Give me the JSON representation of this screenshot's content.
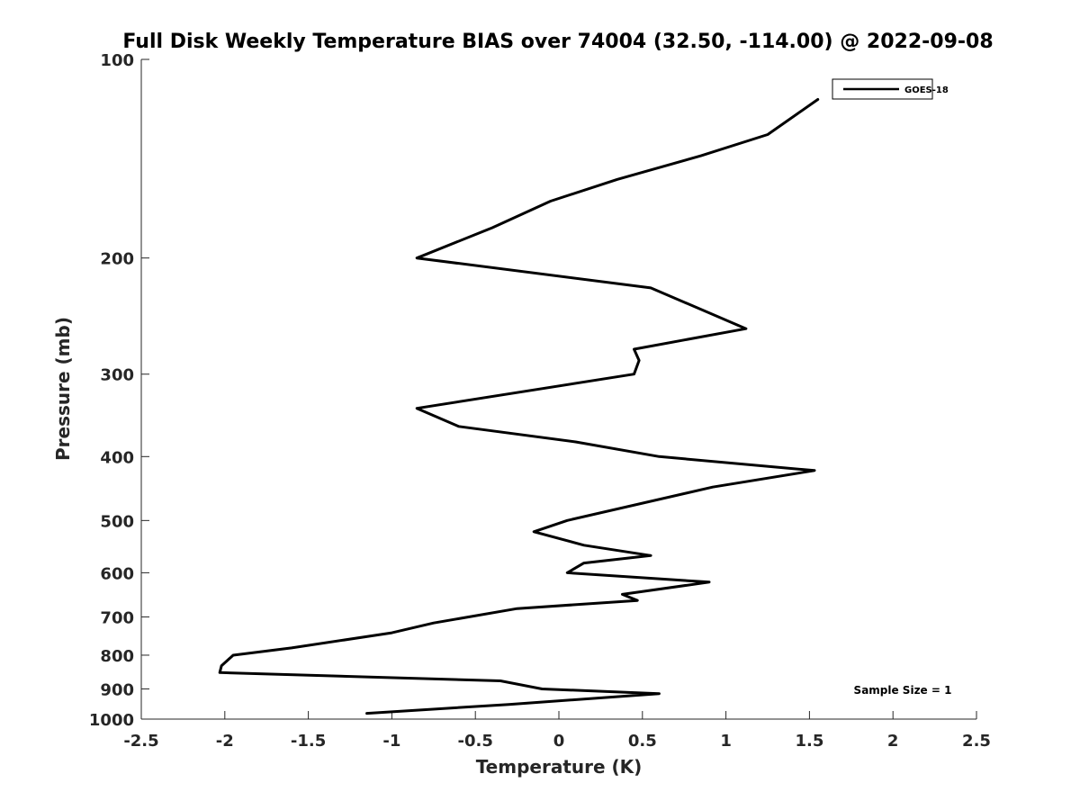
{
  "chart_data": {
    "type": "line",
    "title": "Full Disk Weekly Temperature BIAS over 74004 (32.50, -114.00) @ 2022-09-08",
    "xlabel": "Temperature (K)",
    "ylabel": "Pressure (mb)",
    "xlim": [
      -2.5,
      2.5
    ],
    "ylim": [
      1000,
      100
    ],
    "yscale": "log",
    "x_ticks": [
      -2.5,
      -2,
      -1.5,
      -1,
      -0.5,
      0,
      0.5,
      1,
      1.5,
      2,
      2.5
    ],
    "x_tick_labels": [
      "-2.5",
      "-2",
      "-1.5",
      "-1",
      "-0.5",
      "0",
      "0.5",
      "1",
      "1.5",
      "2",
      "2.5"
    ],
    "y_ticks": [
      100,
      200,
      300,
      400,
      500,
      600,
      700,
      800,
      900,
      1000
    ],
    "y_tick_labels": [
      "100",
      "200",
      "300",
      "400",
      "500",
      "600",
      "700",
      "800",
      "900",
      "1000"
    ],
    "grid": false,
    "legend_position": "top-right",
    "series": [
      {
        "name": "GOES-18",
        "color": "#000000",
        "points": [
          {
            "t": 1.55,
            "p": 115
          },
          {
            "t": 1.25,
            "p": 130
          },
          {
            "t": 0.85,
            "p": 140
          },
          {
            "t": 0.35,
            "p": 152
          },
          {
            "t": -0.05,
            "p": 164
          },
          {
            "t": -0.4,
            "p": 180
          },
          {
            "t": -0.85,
            "p": 200
          },
          {
            "t": 0.55,
            "p": 222
          },
          {
            "t": 1.12,
            "p": 256
          },
          {
            "t": 0.45,
            "p": 275
          },
          {
            "t": 0.48,
            "p": 286
          },
          {
            "t": 0.45,
            "p": 300
          },
          {
            "t": -0.85,
            "p": 338
          },
          {
            "t": -0.6,
            "p": 360
          },
          {
            "t": 0.1,
            "p": 380
          },
          {
            "t": 0.6,
            "p": 400
          },
          {
            "t": 1.53,
            "p": 420
          },
          {
            "t": 0.92,
            "p": 445
          },
          {
            "t": 0.05,
            "p": 500
          },
          {
            "t": -0.15,
            "p": 520
          },
          {
            "t": 0.15,
            "p": 545
          },
          {
            "t": 0.55,
            "p": 565
          },
          {
            "t": 0.15,
            "p": 580
          },
          {
            "t": 0.05,
            "p": 600
          },
          {
            "t": 0.9,
            "p": 620
          },
          {
            "t": 0.38,
            "p": 647
          },
          {
            "t": 0.47,
            "p": 661
          },
          {
            "t": -0.25,
            "p": 680
          },
          {
            "t": -0.75,
            "p": 715
          },
          {
            "t": -1.0,
            "p": 740
          },
          {
            "t": -1.6,
            "p": 780
          },
          {
            "t": -1.95,
            "p": 800
          },
          {
            "t": -2.02,
            "p": 830
          },
          {
            "t": -2.03,
            "p": 850
          },
          {
            "t": -0.35,
            "p": 875
          },
          {
            "t": -0.1,
            "p": 900
          },
          {
            "t": 0.6,
            "p": 915
          },
          {
            "t": -0.3,
            "p": 950
          },
          {
            "t": -1.15,
            "p": 980
          }
        ]
      }
    ],
    "annotations": [
      {
        "text": "Sample Size = 1",
        "position": "bottom-right"
      }
    ]
  }
}
